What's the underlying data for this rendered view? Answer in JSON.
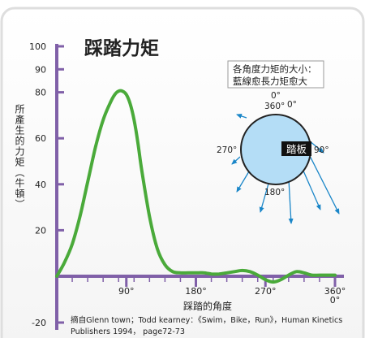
{
  "colors": {
    "axis": "#8060a8",
    "curve": "#4aaa3a",
    "pedal_fill": "#b4ddf6",
    "arrow": "#1a86c8",
    "text": "#222222",
    "frame": "#dedede",
    "label_box_bg": "#111111",
    "label_box_text": "#ffffff"
  },
  "chart_data": {
    "type": "line",
    "title": "踩踏力矩",
    "xlabel": "踩踏的角度",
    "ylabel": "所產生的力矩（牛頓）",
    "xlim": [
      0,
      360
    ],
    "ylim": [
      -20,
      100
    ],
    "y_ticks": [
      {
        "value": 100,
        "label": "100"
      },
      {
        "value": 90,
        "label": "90"
      },
      {
        "value": 80,
        "label": "80"
      },
      {
        "value": 60,
        "label": "60"
      },
      {
        "value": 40,
        "label": "40"
      },
      {
        "value": 20,
        "label": "20"
      },
      {
        "value": -20,
        "label": "-20"
      }
    ],
    "x_ticks": [
      {
        "value": 90,
        "label": "90°"
      },
      {
        "value": 180,
        "label": "180°"
      },
      {
        "value": 270,
        "label": "270°"
      },
      {
        "value": 360,
        "label": "360°"
      }
    ],
    "x_extra_label": {
      "value": 360,
      "label": "0°"
    },
    "series": [
      {
        "x": [
          0,
          10,
          20,
          30,
          40,
          50,
          60,
          70,
          75,
          80,
          85,
          90,
          95,
          100,
          105,
          110,
          120,
          130,
          140,
          150,
          160,
          170,
          180,
          190,
          200,
          210,
          220,
          230,
          240,
          250,
          260,
          270,
          280,
          290,
          300,
          310,
          320,
          330,
          340,
          350,
          360
        ],
        "y": [
          0,
          6,
          14,
          26,
          41,
          56,
          68,
          76,
          79,
          80.5,
          80.5,
          79,
          75,
          68,
          58,
          46,
          26,
          12,
          5,
          2,
          1.5,
          1.5,
          1.5,
          1.5,
          1,
          1,
          1.5,
          2,
          2.5,
          2,
          0.5,
          -1.5,
          -2.5,
          -1.5,
          0.5,
          2,
          1.5,
          0.5,
          0.5,
          0.5,
          0.5
        ]
      }
    ]
  },
  "inset": {
    "caption_line1": "各角度力矩的大小：",
    "caption_line2": "藍線愈長力矩愈大",
    "pedal_label": "踏板",
    "angle_top_0": "0°",
    "angle_top_360": "360°",
    "angle_top_0b": "0°",
    "angle_right": "90°",
    "angle_bottom": "180°",
    "angle_left": "270°"
  },
  "source": {
    "line1": "摘自Glenn town；Todd kearney：《Swim，Bike，Run》，Human Kinetics",
    "line2": "Publishers 1994， page72-73"
  }
}
